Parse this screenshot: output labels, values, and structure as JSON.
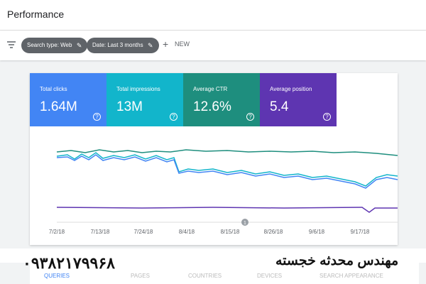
{
  "header": {
    "title": "Performance"
  },
  "filters": {
    "chips": [
      "Search type: Web",
      "Date: Last 3 months"
    ],
    "new_button": "NEW"
  },
  "cards": [
    {
      "label": "Total clicks",
      "value": "1.64M"
    },
    {
      "label": "Total impressions",
      "value": "13M"
    },
    {
      "label": "Average CTR",
      "value": "12.6%"
    },
    {
      "label": "Average position",
      "value": "5.4"
    }
  ],
  "chart": {
    "x_labels": [
      "7/2/18",
      "7/13/18",
      "7/24/18",
      "8/4/18",
      "8/15/18",
      "8/26/18",
      "9/6/18",
      "9/17/18"
    ],
    "annotation": "1"
  },
  "tabs": [
    "QUERIES",
    "PAGES",
    "COUNTRIES",
    "DEVICES",
    "SEARCH APPEARANCE"
  ],
  "watermark": {
    "phone": "۰۹۳۸۲۱۷۹۹۶۸",
    "name": "مهندس محدثه خجسته"
  }
}
